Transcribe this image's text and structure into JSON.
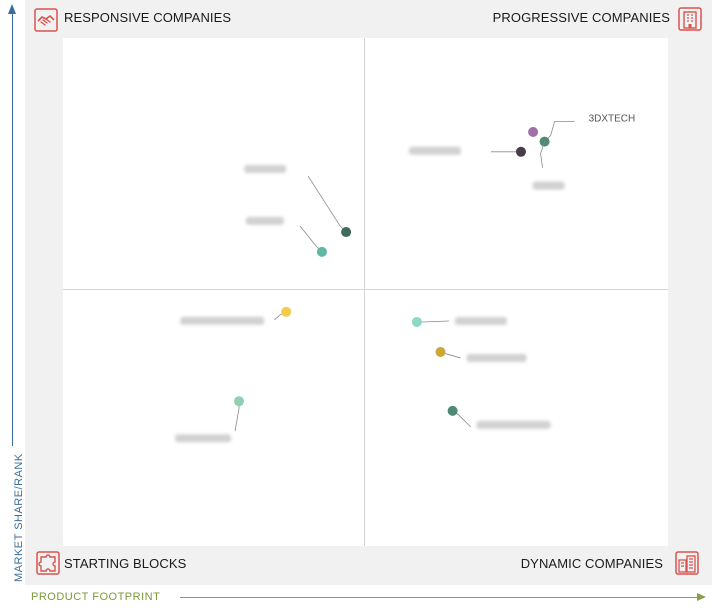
{
  "quadrants": {
    "top_left": "RESPONSIVE COMPANIES",
    "top_right": "PROGRESSIVE COMPANIES",
    "bottom_left": "STARTING BLOCKS",
    "bottom_right": "DYNAMIC COMPANIES"
  },
  "icons": {
    "top_left": "handshake-icon",
    "top_right": "building-icon",
    "bottom_left": "puzzle-icon",
    "bottom_right": "building-icon"
  },
  "axes": {
    "y_label": "MARKET SHARE/RANK",
    "x_label": "PRODUCT FOOTPRINT"
  },
  "colors": {
    "quadrant_title": "#1a1a1a",
    "icon_red": "#d9534f",
    "y_axis": "#3a6d9a",
    "x_axis": "#7a9a3a"
  },
  "chart_data": {
    "type": "scatter",
    "title": "",
    "xlabel": "PRODUCT FOOTPRINT",
    "ylabel": "MARKET SHARE/RANK",
    "xlim": [
      0,
      100
    ],
    "ylim": [
      0,
      100
    ],
    "grid": false,
    "points": [
      {
        "label": "3DXTECH",
        "x": 79.6,
        "y": 79.6,
        "color": "#4e8a74",
        "label_blurred": false
      },
      {
        "label": "",
        "x": 77.7,
        "y": 81.5,
        "color": "#a06fa8",
        "label_blurred": true
      },
      {
        "label": "",
        "x": 75.7,
        "y": 77.6,
        "color": "#4a3a4a",
        "label_blurred": true
      },
      {
        "label": "",
        "x": 46.8,
        "y": 61.8,
        "color": "#3f6a5e",
        "label_blurred": true
      },
      {
        "label": "",
        "x": 42.8,
        "y": 57.9,
        "color": "#5fb8a4",
        "label_blurred": true
      },
      {
        "label": "",
        "x": 36.9,
        "y": 46.1,
        "color": "#f2cc4e",
        "label_blurred": true
      },
      {
        "label": "",
        "x": 29.1,
        "y": 28.5,
        "color": "#8ed1b2",
        "label_blurred": true
      },
      {
        "label": "",
        "x": 58.5,
        "y": 44.1,
        "color": "#8ed7c4",
        "label_blurred": true
      },
      {
        "label": "",
        "x": 62.4,
        "y": 38.2,
        "color": "#c9a838",
        "label_blurred": true
      },
      {
        "label": "",
        "x": 64.4,
        "y": 26.6,
        "color": "#4e8a74",
        "label_blurred": true
      }
    ]
  }
}
